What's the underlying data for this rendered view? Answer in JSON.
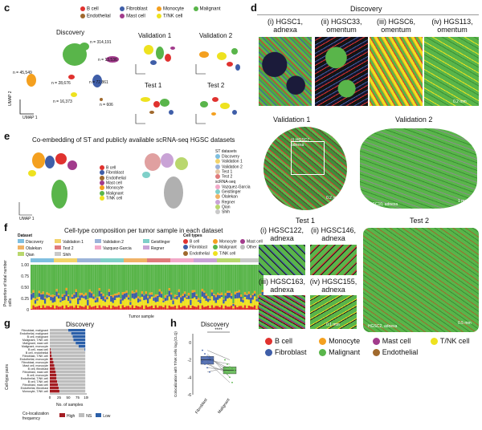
{
  "panel_c": {
    "letter": "c",
    "legend": [
      {
        "label": "B cell",
        "color": "#e0322f"
      },
      {
        "label": "Fibroblast",
        "color": "#3f5ea8"
      },
      {
        "label": "Monocyte",
        "color": "#f4a01f"
      },
      {
        "label": "Malignant",
        "color": "#59b54a"
      },
      {
        "label": "Endothelial",
        "color": "#a0692d"
      },
      {
        "label": "Mast cell",
        "color": "#a23b8c"
      },
      {
        "label": "T/NK cell",
        "color": "#eee21f"
      }
    ],
    "discovery_title": "Discovery",
    "counts": [
      "n = 314,191",
      "n = 13,536",
      "n = 45,549",
      "n = 28,676",
      "n = 72,861",
      "n = 16,373",
      "n = 606"
    ],
    "validation1_title": "Validation 1",
    "validation2_title": "Validation 2",
    "test1_title": "Test 1",
    "test2_title": "Test 2",
    "umap1": "UMAP 1",
    "umap2": "UMAP 2"
  },
  "panel_e": {
    "letter": "e",
    "title": "Co-embedding of ST and publicly available scRNA-seq HGSC datasets",
    "cell_legend": [
      "B cell",
      "Fibroblast",
      "Endothelial",
      "Mast cell",
      "Monocyte",
      "Malignant",
      "T/NK cell"
    ],
    "st_header": "ST datasets",
    "st_items": [
      "Discovery",
      "Validation 1",
      "Validation 2",
      "Test 1",
      "Test 2"
    ],
    "sc_header": "scRNA-seq",
    "sc_items": [
      "Vazquez-Garcia",
      "Geistlinger",
      "Olalekan",
      "Regner",
      "Qian",
      "Shih"
    ],
    "umap1": "UMAP 1",
    "umap2": "UMAP 2"
  },
  "panel_f": {
    "letter": "f",
    "title": "Cell-type composition per tumor sample in each dataset",
    "dataset_header": "Dataset",
    "dataset_items": [
      {
        "label": "Discovery",
        "color": "#7fbfe0"
      },
      {
        "label": "Validation 1",
        "color": "#f2d36b"
      },
      {
        "label": "Validation 2",
        "color": "#9bb3d9"
      },
      {
        "label": "Geistlinger",
        "color": "#7fd0c9"
      },
      {
        "label": "Olalekan",
        "color": "#f0b266"
      },
      {
        "label": "Test 2",
        "color": "#e07b7b"
      },
      {
        "label": "Vazquez-Garcia",
        "color": "#f2a9c8"
      },
      {
        "label": "Regner",
        "color": "#c9a3d6"
      },
      {
        "label": "Qian",
        "color": "#b9d76e"
      },
      {
        "label": "Shih",
        "color": "#c9c9c9"
      }
    ],
    "celltype_header": "Cell types",
    "celltype_items": [
      {
        "label": "B cell",
        "color": "#e0322f"
      },
      {
        "label": "Monocyte",
        "color": "#f4a01f"
      },
      {
        "label": "Mast cell",
        "color": "#a23b8c"
      },
      {
        "label": "Fibroblast",
        "color": "#3f5ea8"
      },
      {
        "label": "Malignant",
        "color": "#59b54a"
      },
      {
        "label": "Other",
        "color": "#bdbdbd"
      },
      {
        "label": "Endothelial",
        "color": "#a0692d"
      },
      {
        "label": "T/NK cell",
        "color": "#eee21f"
      }
    ],
    "ylabel": "Proportion of total number cells",
    "xlabel": "Tumor sample",
    "yticks": [
      "0",
      "0.25",
      "0.50",
      "0.75",
      "1.00"
    ]
  },
  "panel_g": {
    "letter": "g",
    "title": "Discovery",
    "ylabel": "Cell-type pairs",
    "xlabel": "No. of samples",
    "xticks": [
      "0",
      "25",
      "50",
      "75",
      "100"
    ],
    "legend_title": "Co-localization frequency",
    "legend": [
      {
        "label": "High",
        "color": "#a31c22"
      },
      {
        "label": "NS",
        "color": "#bdbdbd"
      },
      {
        "label": "Low",
        "color": "#2b5fa8"
      }
    ]
  },
  "panel_h": {
    "letter": "h",
    "title": "Discovery",
    "ylabel": "Colocalization with T/NK cells log₂(CLQ)",
    "sig": "****",
    "groups": [
      "Fibroblast",
      "Malignant"
    ],
    "yticks": [
      "0",
      "-2",
      "-4",
      "-6"
    ]
  },
  "chart_data": [
    {
      "type": "bar",
      "title": "Discovery",
      "xlabel": "No. of samples",
      "ylabel": "Cell-type pairs",
      "xlim": [
        0,
        100
      ],
      "categories": [
        "Fibroblast, malignant",
        "Endothelial, malignant",
        "B cell, malignant",
        "Malignant, T/NK cell",
        "Malignant, mast cell",
        "Malignant, monocyte",
        "B cell, mast cell",
        "B cell, endothelial",
        "Fibroblast, T/NK cell",
        "Endothelial, monocyte",
        "Fibroblast, monocyte",
        "Mast cell, monocyte",
        "B cell, fibroblast",
        "Fibroblast, mast cell",
        "B cell, monocyte",
        "Endothelial, T/NK cell",
        "B cell, T/NK cell",
        "Fibroblast, mast cell",
        "Endothelial, fibroblast",
        "Monocyte, T/NK cell"
      ],
      "series": [
        {
          "name": "High",
          "color": "#a31c22",
          "values": [
            0,
            0,
            0,
            0,
            0,
            0,
            2,
            4,
            5,
            8,
            10,
            12,
            14,
            16,
            18,
            18,
            20,
            22,
            24,
            26
          ]
        },
        {
          "name": "NS",
          "color": "#bdbdbd",
          "values": [
            50,
            58,
            62,
            64,
            70,
            78,
            92,
            92,
            91,
            88,
            86,
            84,
            82,
            80,
            78,
            78,
            76,
            74,
            72,
            70
          ]
        },
        {
          "name": "Low",
          "color": "#2b5fa8",
          "values": [
            46,
            38,
            34,
            32,
            26,
            18,
            2,
            0,
            0,
            0,
            0,
            0,
            0,
            0,
            0,
            0,
            0,
            0,
            0,
            0
          ]
        }
      ]
    },
    {
      "type": "scatter",
      "title": "Discovery",
      "ylabel": "Colocalization with T/NK cells log₂(CLQ)",
      "categories": [
        "Fibroblast",
        "Malignant"
      ],
      "ylim": [
        -6,
        1
      ],
      "series": [
        {
          "name": "Fibroblast",
          "color": "#3f5ea8",
          "values": [
            -0.9,
            -1.3,
            -1.6,
            -1.8,
            -2.0,
            -2.2,
            -2.5,
            -2.9,
            -3.4
          ]
        },
        {
          "name": "Malignant",
          "color": "#59b54a",
          "values": [
            -2.0,
            -2.5,
            -2.8,
            -3.0,
            -3.2,
            -3.4,
            -3.6,
            -4.0,
            -4.6
          ]
        }
      ]
    }
  ],
  "panel_d": {
    "letter": "d",
    "discovery_title": "Discovery",
    "discovery_tiles": [
      {
        "label": "(i) HGSC1, adnexa"
      },
      {
        "label": "(ii) HGSC33, omentum"
      },
      {
        "label": "(iii) HGSC6, omentum"
      },
      {
        "label": "(iv) HGS113, omentum"
      }
    ],
    "scale_02": "0.2 mm",
    "validation1_title": "Validation 1",
    "validation1_inset": "(i) HGSC7 adnexa",
    "validation1_scale": "0.2 mm",
    "validation2_title": "Validation 2",
    "validation2_caption": "HGSC10, adnexa",
    "validation2_scale": "1 mm",
    "test1_title": "Test 1",
    "test1_tiles": [
      {
        "label": "(i) HGSC122, adnexa"
      },
      {
        "label": "(ii) HGSC146, adnexa"
      },
      {
        "label": "(iii) HGSC163, adnexa"
      },
      {
        "label": "(iv) HGSC155, adnexa"
      }
    ],
    "test1_scale": "0.1 mm",
    "test2_title": "Test 2",
    "test2_caption": "HGSC2, adnexa",
    "test2_scale": "0.5 mm",
    "bottom_legend": [
      {
        "label": "B cell",
        "color": "#e0322f"
      },
      {
        "label": "Monocyte",
        "color": "#f4a01f"
      },
      {
        "label": "Mast cell",
        "color": "#a23b8c"
      },
      {
        "label": "T/NK cell",
        "color": "#eee21f"
      },
      {
        "label": "Fibroblast",
        "color": "#3f5ea8"
      },
      {
        "label": "Malignant",
        "color": "#59b54a"
      },
      {
        "label": "Endothelial",
        "color": "#a0692d"
      }
    ]
  }
}
